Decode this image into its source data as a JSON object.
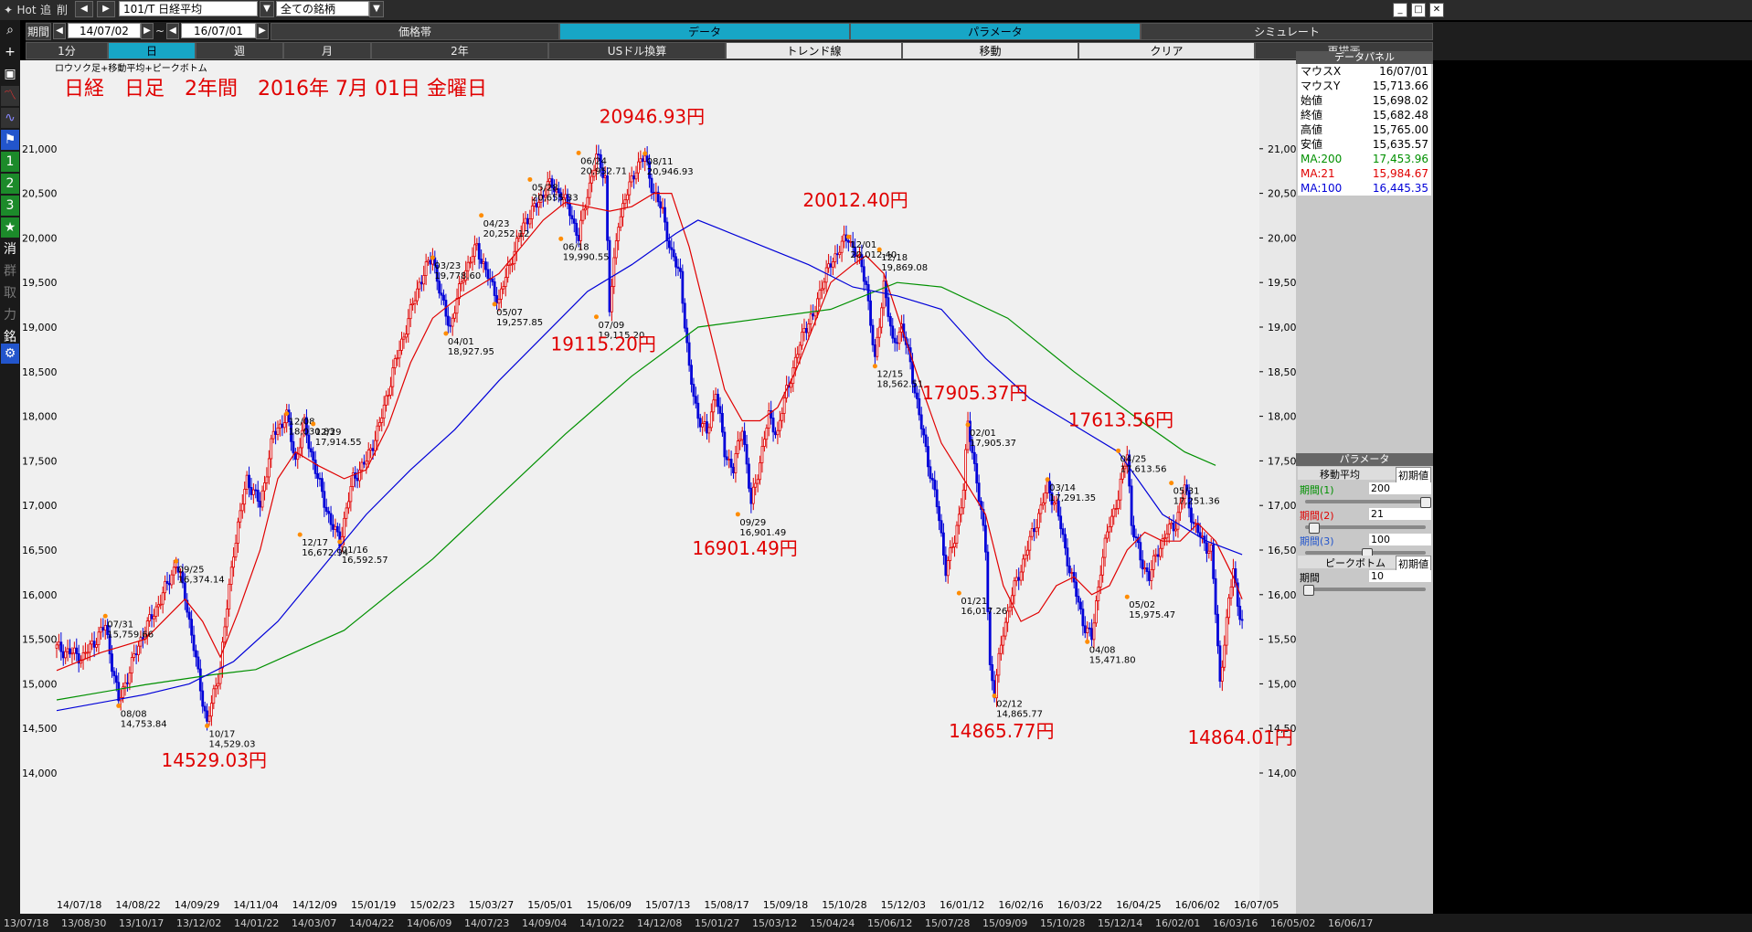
{
  "toolbar": {
    "hot": "Hot",
    "add": "追",
    "del": "削",
    "symbol": "101/T 日経平均",
    "universe": "全ての銘柄"
  },
  "range": {
    "label": "期間",
    "from": "14/07/02",
    "sep": "~",
    "to": "16/07/01"
  },
  "tabs_top": [
    "価格帯",
    "データ",
    "パラメータ",
    "シミュレート"
  ],
  "timeframes": [
    "1分",
    "日",
    "週",
    "月",
    "2年",
    "USドル換算",
    "トレンド線",
    "移動",
    "クリア",
    "再描画"
  ],
  "left_tools": [
    "1",
    "2",
    "3",
    "消",
    "群",
    "取",
    "力",
    "銘"
  ],
  "chart_data": {
    "type": "candlestick",
    "subtitle": "ロウソク足+移動平均+ピークボトム",
    "title": "日経　日足　2年間　2016年 7月 01日 金曜日",
    "ylim": [
      14000,
      21500
    ],
    "yticks": [
      "21,000",
      "20,500",
      "20,000",
      "19,500",
      "19,000",
      "18,500",
      "18,000",
      "17,500",
      "17,000",
      "16,500",
      "16,000",
      "15,500",
      "15,000",
      "14,500",
      "14,000"
    ],
    "xticks": [
      "14/07/18",
      "14/08/22",
      "14/09/29",
      "14/11/04",
      "14/12/09",
      "15/01/19",
      "15/02/23",
      "15/03/27",
      "15/05/01",
      "15/06/09",
      "15/07/13",
      "15/08/17",
      "15/09/18",
      "15/10/28",
      "15/12/03",
      "16/01/12",
      "16/02/16",
      "16/03/22",
      "16/04/25",
      "16/06/02",
      "16/07/05"
    ],
    "close_path": [
      [
        0,
        15400
      ],
      [
        12,
        15300
      ],
      [
        22,
        15650
      ],
      [
        28,
        14800
      ],
      [
        38,
        15500
      ],
      [
        48,
        16000
      ],
      [
        54,
        16350
      ],
      [
        58,
        16000
      ],
      [
        64,
        15100
      ],
      [
        68,
        14550
      ],
      [
        74,
        15200
      ],
      [
        80,
        16500
      ],
      [
        86,
        17300
      ],
      [
        92,
        17000
      ],
      [
        98,
        17800
      ],
      [
        104,
        18000
      ],
      [
        108,
        17500
      ],
      [
        112,
        17900
      ],
      [
        118,
        17300
      ],
      [
        124,
        16800
      ],
      [
        128,
        16600
      ],
      [
        134,
        17300
      ],
      [
        140,
        17500
      ],
      [
        146,
        17900
      ],
      [
        152,
        18500
      ],
      [
        158,
        19000
      ],
      [
        164,
        19500
      ],
      [
        170,
        19800
      ],
      [
        174,
        19300
      ],
      [
        178,
        19000
      ],
      [
        184,
        19600
      ],
      [
        190,
        19900
      ],
      [
        196,
        19500
      ],
      [
        200,
        19300
      ],
      [
        206,
        19800
      ],
      [
        212,
        20200
      ],
      [
        218,
        20400
      ],
      [
        222,
        20600
      ],
      [
        228,
        20500
      ],
      [
        232,
        20300
      ],
      [
        236,
        20000
      ],
      [
        240,
        20500
      ],
      [
        244,
        20900
      ],
      [
        248,
        20700
      ],
      [
        250,
        19200
      ],
      [
        254,
        20200
      ],
      [
        258,
        20500
      ],
      [
        262,
        20800
      ],
      [
        266,
        20900
      ],
      [
        270,
        20500
      ],
      [
        274,
        20300
      ],
      [
        278,
        19800
      ],
      [
        282,
        19600
      ],
      [
        286,
        18500
      ],
      [
        290,
        18000
      ],
      [
        294,
        17800
      ],
      [
        298,
        18300
      ],
      [
        302,
        17600
      ],
      [
        306,
        17400
      ],
      [
        310,
        17900
      ],
      [
        314,
        17000
      ],
      [
        318,
        17500
      ],
      [
        322,
        18000
      ],
      [
        326,
        17800
      ],
      [
        330,
        18300
      ],
      [
        334,
        18600
      ],
      [
        338,
        19000
      ],
      [
        342,
        19100
      ],
      [
        346,
        19500
      ],
      [
        350,
        19700
      ],
      [
        354,
        19900
      ],
      [
        358,
        20000
      ],
      [
        362,
        19800
      ],
      [
        366,
        19500
      ],
      [
        370,
        18600
      ],
      [
        374,
        19500
      ],
      [
        378,
        18800
      ],
      [
        382,
        19000
      ],
      [
        386,
        18600
      ],
      [
        390,
        18000
      ],
      [
        394,
        17500
      ],
      [
        398,
        17000
      ],
      [
        402,
        16300
      ],
      [
        406,
        16600
      ],
      [
        410,
        17200
      ],
      [
        412,
        17900
      ],
      [
        416,
        17300
      ],
      [
        420,
        16500
      ],
      [
        422,
        15200
      ],
      [
        424,
        14900
      ],
      [
        428,
        15600
      ],
      [
        432,
        16000
      ],
      [
        436,
        16300
      ],
      [
        440,
        16600
      ],
      [
        444,
        16900
      ],
      [
        448,
        17200
      ],
      [
        452,
        17000
      ],
      [
        456,
        16500
      ],
      [
        460,
        16100
      ],
      [
        464,
        15700
      ],
      [
        468,
        15500
      ],
      [
        472,
        16300
      ],
      [
        476,
        16800
      ],
      [
        480,
        17100
      ],
      [
        484,
        17600
      ],
      [
        486,
        16800
      ],
      [
        490,
        16400
      ],
      [
        494,
        16200
      ],
      [
        498,
        16500
      ],
      [
        502,
        16700
      ],
      [
        506,
        16800
      ],
      [
        510,
        17200
      ],
      [
        514,
        16800
      ],
      [
        518,
        16600
      ],
      [
        522,
        16500
      ],
      [
        524,
        15800
      ],
      [
        526,
        15000
      ],
      [
        528,
        15500
      ],
      [
        530,
        15900
      ],
      [
        532,
        16300
      ],
      [
        534,
        15900
      ],
      [
        536,
        15700
      ]
    ],
    "ma": [
      {
        "name": "MA:200",
        "color": "#009000",
        "path": [
          [
            0,
            14820
          ],
          [
            40,
            14990
          ],
          [
            70,
            15100
          ],
          [
            90,
            15160
          ],
          [
            130,
            15600
          ],
          [
            170,
            16400
          ],
          [
            200,
            17100
          ],
          [
            230,
            17800
          ],
          [
            260,
            18450
          ],
          [
            290,
            19000
          ],
          [
            320,
            19100
          ],
          [
            350,
            19200
          ],
          [
            380,
            19500
          ],
          [
            400,
            19450
          ],
          [
            430,
            19100
          ],
          [
            460,
            18500
          ],
          [
            490,
            17950
          ],
          [
            510,
            17600
          ],
          [
            524,
            17450
          ]
        ]
      },
      {
        "name": "MA:21",
        "color": "#e00000",
        "path": [
          [
            0,
            15150
          ],
          [
            20,
            15350
          ],
          [
            40,
            15500
          ],
          [
            52,
            15800
          ],
          [
            58,
            15950
          ],
          [
            66,
            15700
          ],
          [
            74,
            15300
          ],
          [
            82,
            15800
          ],
          [
            92,
            16500
          ],
          [
            100,
            17300
          ],
          [
            108,
            17600
          ],
          [
            118,
            17450
          ],
          [
            130,
            17300
          ],
          [
            140,
            17400
          ],
          [
            150,
            17900
          ],
          [
            160,
            18600
          ],
          [
            170,
            19100
          ],
          [
            180,
            19300
          ],
          [
            190,
            19450
          ],
          [
            200,
            19600
          ],
          [
            210,
            19900
          ],
          [
            220,
            20200
          ],
          [
            230,
            20400
          ],
          [
            240,
            20350
          ],
          [
            250,
            20300
          ],
          [
            260,
            20350
          ],
          [
            270,
            20500
          ],
          [
            278,
            20500
          ],
          [
            286,
            19900
          ],
          [
            294,
            19100
          ],
          [
            302,
            18300
          ],
          [
            310,
            17950
          ],
          [
            318,
            17950
          ],
          [
            326,
            18100
          ],
          [
            334,
            18500
          ],
          [
            342,
            19000
          ],
          [
            350,
            19500
          ],
          [
            360,
            19700
          ],
          [
            366,
            19800
          ],
          [
            374,
            19600
          ],
          [
            382,
            19000
          ],
          [
            390,
            18400
          ],
          [
            400,
            17700
          ],
          [
            410,
            17300
          ],
          [
            420,
            16900
          ],
          [
            428,
            16100
          ],
          [
            436,
            15700
          ],
          [
            444,
            15800
          ],
          [
            452,
            16100
          ],
          [
            460,
            16200
          ],
          [
            468,
            16000
          ],
          [
            476,
            16100
          ],
          [
            484,
            16500
          ],
          [
            492,
            16700
          ],
          [
            500,
            16600
          ],
          [
            508,
            16600
          ],
          [
            516,
            16800
          ],
          [
            524,
            16600
          ],
          [
            532,
            16200
          ],
          [
            536,
            15950
          ]
        ]
      },
      {
        "name": "MA:100",
        "color": "#0000d8",
        "path": [
          [
            0,
            14700
          ],
          [
            40,
            14880
          ],
          [
            60,
            15000
          ],
          [
            80,
            15250
          ],
          [
            100,
            15700
          ],
          [
            120,
            16300
          ],
          [
            140,
            16900
          ],
          [
            160,
            17400
          ],
          [
            180,
            17850
          ],
          [
            200,
            18400
          ],
          [
            220,
            18900
          ],
          [
            240,
            19400
          ],
          [
            260,
            19700
          ],
          [
            280,
            20050
          ],
          [
            290,
            20200
          ],
          [
            300,
            20100
          ],
          [
            320,
            19900
          ],
          [
            340,
            19700
          ],
          [
            360,
            19450
          ],
          [
            380,
            19350
          ],
          [
            400,
            19200
          ],
          [
            420,
            18650
          ],
          [
            440,
            18200
          ],
          [
            460,
            17900
          ],
          [
            480,
            17600
          ],
          [
            500,
            16900
          ],
          [
            520,
            16600
          ],
          [
            536,
            16450
          ]
        ]
      }
    ],
    "peaks": [
      {
        "label": "07/31\n15,759.66",
        "x": 22,
        "y": 15759.66
      },
      {
        "label": "08/08\n14,753.84",
        "x": 28,
        "y": 14753.84
      },
      {
        "label": "09/25\n16,374.14",
        "x": 54,
        "y": 16374.14
      },
      {
        "label": "10/17\n14,529.03",
        "x": 68,
        "y": 14529.03
      },
      {
        "label": "12/08\n18,030.83",
        "x": 104,
        "y": 18030.83
      },
      {
        "label": "12/17\n16,672.94",
        "x": 110,
        "y": 16672.94
      },
      {
        "label": "12/29\n17,914.55",
        "x": 116,
        "y": 17914.55
      },
      {
        "label": "01/16\n16,592.57",
        "x": 128,
        "y": 16592.57
      },
      {
        "label": "03/23\n19,778.60",
        "x": 170,
        "y": 19778.6
      },
      {
        "label": "04/01\n18,927.95",
        "x": 176,
        "y": 18927.95
      },
      {
        "label": "04/23\n20,252.12",
        "x": 192,
        "y": 20252.12
      },
      {
        "label": "05/07\n19,257.85",
        "x": 198,
        "y": 19257.85
      },
      {
        "label": "05/28\n20,655.33",
        "x": 214,
        "y": 20655.33
      },
      {
        "label": "06/18\n19,990.55",
        "x": 228,
        "y": 19990.55
      },
      {
        "label": "06/24\n20,952.71",
        "x": 236,
        "y": 20952.71
      },
      {
        "label": "07/09\n19,115.20",
        "x": 244,
        "y": 19115.2
      },
      {
        "label": "08/11\n20,946.93",
        "x": 266,
        "y": 20946.93
      },
      {
        "label": "09/29\n16,901.49",
        "x": 308,
        "y": 16901.49
      },
      {
        "label": "12/01\n20,012.40",
        "x": 358,
        "y": 20012.4
      },
      {
        "label": "12/18\n19,869.08",
        "x": 372,
        "y": 19869.08
      },
      {
        "label": "12/15\n18,562.51",
        "x": 370,
        "y": 18562.51
      },
      {
        "label": "02/01\n17,905.37",
        "x": 412,
        "y": 17905.37
      },
      {
        "label": "01/21\n16,017.26",
        "x": 408,
        "y": 16017.26
      },
      {
        "label": "02/12\n14,865.77",
        "x": 424,
        "y": 14865.77
      },
      {
        "label": "03/14\n17,291.35",
        "x": 448,
        "y": 17291.35
      },
      {
        "label": "04/08\n15,471.80",
        "x": 466,
        "y": 15471.8
      },
      {
        "label": "04/25\n17,613.56",
        "x": 480,
        "y": 17613.56
      },
      {
        "label": "05/02\n15,975.47",
        "x": 484,
        "y": 15975.47
      },
      {
        "label": "05/31\n17,251.36",
        "x": 504,
        "y": 17251.36
      }
    ],
    "annotations": [
      {
        "text": "20946.93円",
        "x": 266,
        "y": 21290
      },
      {
        "text": "20012.40円",
        "x": 358,
        "y": 20350
      },
      {
        "text": "19115.20円",
        "x": 244,
        "y": 18740
      },
      {
        "text": "17905.37円",
        "x": 412,
        "y": 18190
      },
      {
        "text": "17613.56円",
        "x": 478,
        "y": 17890
      },
      {
        "text": "16901.49円",
        "x": 308,
        "y": 16450
      },
      {
        "text": "14865.77円",
        "x": 424,
        "y": 14400
      },
      {
        "text": "14529.03円",
        "x": 68,
        "y": 14070
      },
      {
        "text": "14864.01円",
        "x": 532,
        "y": 14330
      }
    ]
  },
  "panel": {
    "title": "データパネル",
    "rows": [
      {
        "k": "マウスX",
        "v": "16/07/01",
        "color": "#000"
      },
      {
        "k": "マウスY",
        "v": "15,713.66",
        "color": "#000"
      },
      {
        "k": "始値",
        "v": "15,698.02",
        "color": "#000"
      },
      {
        "k": "終値",
        "v": "15,682.48",
        "color": "#000"
      },
      {
        "k": "高値",
        "v": "15,765.00",
        "color": "#000"
      },
      {
        "k": "安値",
        "v": "15,635.57",
        "color": "#000"
      },
      {
        "k": "MA:200",
        "v": "17,453.96",
        "color": "#009000"
      },
      {
        "k": "MA:21",
        "v": "15,984.67",
        "color": "#e00000"
      },
      {
        "k": "MA:100",
        "v": "16,445.35",
        "color": "#0000d8"
      }
    ],
    "param_title": "パラメータ",
    "ma_section": "移動平均",
    "reset": "初期値",
    "params": [
      {
        "label": "期間(1)",
        "value": "200",
        "color": "#009000",
        "pos": 1.0
      },
      {
        "label": "期間(2)",
        "value": "21",
        "color": "#e00000",
        "pos": 0.05
      },
      {
        "label": "期間(3)",
        "value": "100",
        "color": "#2255cc",
        "pos": 0.5
      }
    ],
    "peak_section": "ピークボトム",
    "peak_param": {
      "label": "期間",
      "value": "10",
      "pos": 0.0
    }
  },
  "bottom_dates": [
    "13/07/18",
    "13/08/30",
    "13/10/17",
    "13/12/02",
    "14/01/22",
    "14/03/07",
    "14/04/22",
    "14/06/09",
    "14/07/23",
    "14/09/04",
    "14/10/22",
    "14/12/08",
    "15/01/27",
    "15/03/12",
    "15/04/24",
    "15/06/12",
    "15/07/28",
    "15/09/09",
    "15/10/28",
    "15/12/14",
    "16/02/01",
    "16/03/16",
    "16/05/02",
    "16/06/17"
  ]
}
